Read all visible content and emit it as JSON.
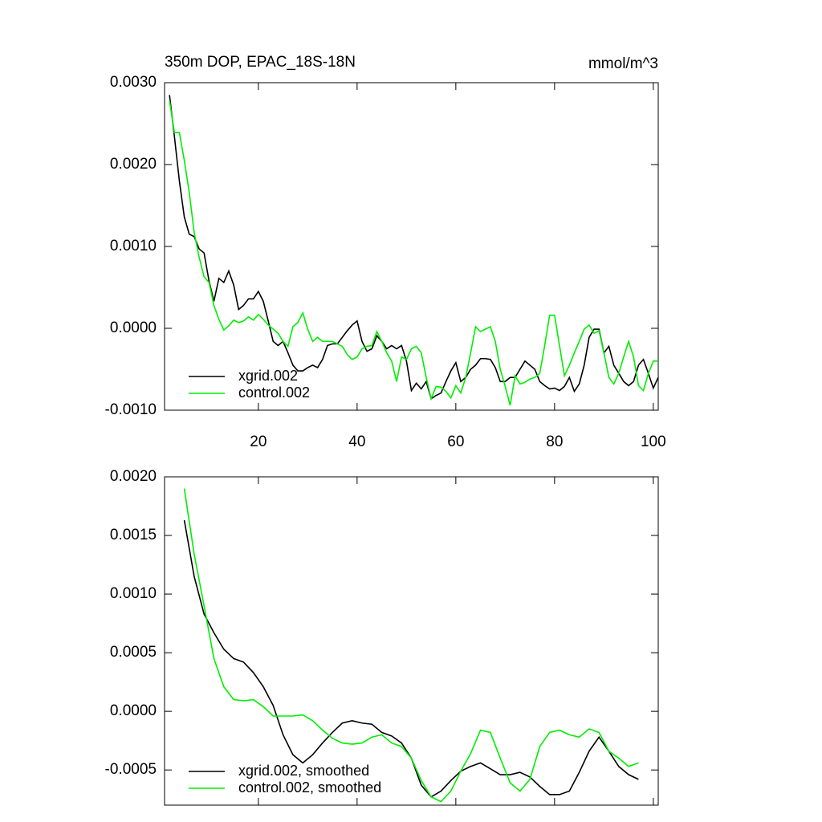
{
  "chart_data": [
    {
      "type": "line",
      "title": "350m DOP, EPAC_18S-18N",
      "units": "mmol/m^3",
      "x": [
        2,
        3,
        4,
        5,
        6,
        7,
        8,
        9,
        10,
        11,
        12,
        13,
        14,
        15,
        16,
        17,
        18,
        19,
        20,
        21,
        22,
        23,
        24,
        25,
        26,
        27,
        28,
        29,
        30,
        31,
        32,
        33,
        34,
        35,
        36,
        37,
        38,
        39,
        40,
        41,
        42,
        43,
        44,
        45,
        46,
        47,
        48,
        49,
        50,
        51,
        52,
        53,
        54,
        55,
        56,
        57,
        58,
        59,
        60,
        61,
        62,
        63,
        64,
        65,
        66,
        67,
        68,
        69,
        70,
        71,
        72,
        73,
        74,
        75,
        76,
        77,
        78,
        79,
        80,
        81,
        82,
        83,
        84,
        85,
        86,
        87,
        88,
        89,
        90,
        91,
        92,
        93,
        94,
        95,
        96,
        97,
        98,
        99,
        100,
        101
      ],
      "series": [
        {
          "name": "xgrid.002",
          "color": "#000000",
          "values": [
            0.00285,
            0.00234,
            0.0018,
            0.00136,
            0.00115,
            0.00112,
            0.00097,
            0.00092,
            0.00058,
            0.00033,
            0.00061,
            0.00056,
            0.0007,
            0.00053,
            0.00023,
            0.00028,
            0.00036,
            0.00036,
            0.00045,
            0.00033,
            9e-05,
            -0.00016,
            -0.00021,
            -0.00016,
            -0.0003,
            -0.00045,
            -0.00052,
            -0.00052,
            -0.00048,
            -0.00045,
            -0.00048,
            -0.00038,
            -0.00021,
            -0.00019,
            -0.00019,
            -0.00011,
            -3e-05,
            4e-05,
            9e-05,
            -0.00016,
            -0.00028,
            -0.00025,
            -9e-05,
            -0.00016,
            -0.00025,
            -0.00021,
            -0.00025,
            -0.00021,
            -0.0004,
            -0.00076,
            -0.00067,
            -0.00074,
            -0.00065,
            -0.00086,
            -0.00082,
            -0.00079,
            -0.00065,
            -0.00052,
            -0.00042,
            -0.00065,
            -0.0006,
            -0.0005,
            -0.00045,
            -0.00037,
            -0.00037,
            -0.00038,
            -0.00048,
            -0.00065,
            -0.00065,
            -0.0006,
            -0.0006,
            -0.0005,
            -0.0004,
            -0.00045,
            -0.0005,
            -0.00065,
            -0.0007,
            -0.00074,
            -0.00073,
            -0.00076,
            -0.00071,
            -0.0006,
            -0.00077,
            -0.00068,
            -0.00045,
            -0.00011,
            -1e-05,
            -1e-05,
            -0.0003,
            -0.00022,
            -0.00045,
            -0.00055,
            -0.00065,
            -0.0007,
            -0.00065,
            -0.00045,
            -0.00038,
            -0.00055,
            -0.00073,
            -0.0006
          ]
        },
        {
          "name": "control.002",
          "color": "#00ee00",
          "values": [
            0.00278,
            0.00239,
            0.00239,
            0.00205,
            0.00166,
            0.00117,
            0.00087,
            0.00063,
            0.00056,
            0.00028,
            0.00011,
            -2e-05,
            3e-05,
            0.0001,
            7e-05,
            9e-05,
            0.00014,
            0.0001,
            0.00017,
            0.00011,
            4e-05,
            -1e-05,
            -6e-05,
            -0.00016,
            -0.00022,
            2e-05,
            7e-05,
            0.00019,
            -1e-05,
            -0.00016,
            -0.00011,
            -0.00016,
            -0.00016,
            -0.00016,
            -0.00019,
            -0.00022,
            -0.00032,
            -0.00038,
            -0.00035,
            -0.00025,
            -0.00022,
            -0.00021,
            -4e-05,
            -0.00016,
            -0.0003,
            -0.0004,
            -0.00065,
            -0.00035,
            -0.00038,
            -0.00025,
            -0.00022,
            -0.0003,
            -0.0006,
            -0.00086,
            -0.00071,
            -0.00072,
            -0.00077,
            -0.00085,
            -0.0007,
            -0.00079,
            -0.0006,
            -0.0003,
            2e-05,
            -4e-05,
            -1e-05,
            2e-05,
            -0.00016,
            -0.0005,
            -0.00071,
            -0.00094,
            -0.00058,
            -0.00068,
            -0.00066,
            -0.00062,
            -0.0006,
            -0.00055,
            -0.00021,
            0.00016,
            0.00016,
            -0.00021,
            -0.00058,
            -0.00045,
            -0.0003,
            -0.00016,
            -1e-05,
            4e-05,
            -6e-05,
            -3e-05,
            -0.0003,
            -0.0006,
            -0.00068,
            -0.00055,
            -0.00035,
            -0.00016,
            -0.00035,
            -0.0007,
            -0.00076,
            -0.00055,
            -0.0004,
            -0.0004
          ]
        }
      ],
      "xlim": [
        1,
        101
      ],
      "xticks": [
        20,
        40,
        60,
        80,
        100
      ],
      "xtick_labels": true,
      "ylim": [
        -0.001,
        0.003
      ],
      "yticks": [
        {
          "value": 0.003,
          "label": "0.0030"
        },
        {
          "value": 0.002,
          "label": "0.0020"
        },
        {
          "value": 0.001,
          "label": "0.0010"
        },
        {
          "value": 0,
          "label": "0.0000"
        },
        {
          "value": -0.001,
          "label": "-0.0010"
        }
      ],
      "legend": "lower left"
    },
    {
      "type": "line",
      "x": [
        5,
        7,
        9,
        11,
        13,
        15,
        17,
        19,
        21,
        23,
        25,
        27,
        29,
        31,
        33,
        35,
        37,
        39,
        41,
        43,
        45,
        47,
        49,
        51,
        53,
        55,
        57,
        59,
        61,
        63,
        65,
        67,
        69,
        71,
        73,
        75,
        77,
        79,
        81,
        83,
        85,
        87,
        89,
        91,
        93,
        95,
        97
      ],
      "series": [
        {
          "name": "xgrid.002, smoothed",
          "color": "#000000",
          "values": [
            0.00163,
            0.00115,
            0.00083,
            0.00067,
            0.00053,
            0.00045,
            0.00042,
            0.00033,
            0.00021,
            5e-05,
            -0.0002,
            -0.00037,
            -0.00044,
            -0.00037,
            -0.00027,
            -0.00018,
            -0.0001,
            -8e-05,
            -0.0001,
            -0.00011,
            -0.00018,
            -0.00021,
            -0.00027,
            -0.0004,
            -0.00063,
            -0.00073,
            -0.00068,
            -0.00059,
            -0.00051,
            -0.00047,
            -0.00044,
            -0.00049,
            -0.00054,
            -0.00054,
            -0.00052,
            -0.00056,
            -0.00064,
            -0.00071,
            -0.00071,
            -0.00068,
            -0.00052,
            -0.00034,
            -0.00022,
            -0.00034,
            -0.00047,
            -0.00054,
            -0.00058
          ]
        },
        {
          "name": "control.002, smoothed",
          "color": "#00ee00",
          "values": [
            0.0019,
            0.00134,
            0.0009,
            0.00045,
            0.00021,
            0.0001,
            9e-05,
            0.0001,
            4e-05,
            -4e-05,
            -4e-05,
            -4e-05,
            -3e-05,
            -8e-05,
            -0.00016,
            -0.00023,
            -0.00027,
            -0.00028,
            -0.00027,
            -0.00022,
            -0.0002,
            -0.00027,
            -0.0003,
            -0.0004,
            -0.00059,
            -0.00073,
            -0.00077,
            -0.00068,
            -0.00051,
            -0.00036,
            -0.00016,
            -0.00018,
            -0.0004,
            -0.00061,
            -0.00068,
            -0.00058,
            -0.0003,
            -0.00018,
            -0.00016,
            -0.0002,
            -0.00022,
            -0.00015,
            -0.00018,
            -0.00034,
            -0.0004,
            -0.00047,
            -0.00044
          ]
        }
      ],
      "xlim": [
        1,
        101
      ],
      "xticks": [
        20,
        40,
        60,
        80,
        100
      ],
      "xtick_labels": false,
      "ylim": [
        -0.0008,
        0.002
      ],
      "yticks": [
        {
          "value": 0.002,
          "label": "0.0020"
        },
        {
          "value": 0.0015,
          "label": "0.0015"
        },
        {
          "value": 0.001,
          "label": "0.0010"
        },
        {
          "value": 0.0005,
          "label": "0.0005"
        },
        {
          "value": 0,
          "label": "0.0000"
        },
        {
          "value": -0.0005,
          "label": "-0.0005"
        }
      ],
      "legend": "lower left"
    }
  ]
}
